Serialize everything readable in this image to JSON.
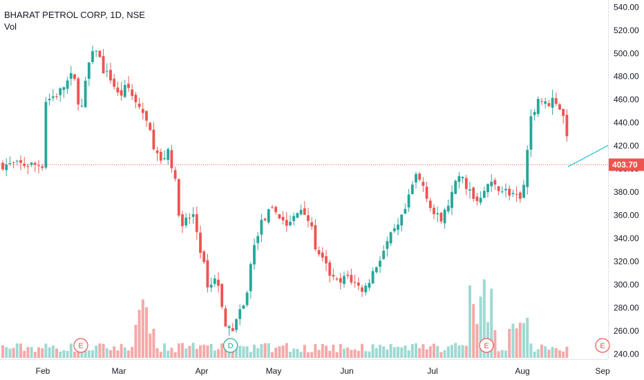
{
  "legend": {
    "title": "BHARAT PETROL CORP, 1D, NSE",
    "volume_label": "Vol"
  },
  "colors": {
    "up": "#26a69a",
    "down": "#ef5350",
    "up_volume": "#9fd9d3",
    "down_volume": "#f5a9a8",
    "last_price_line": "#ef5350",
    "projection": "#26c6da"
  },
  "last_price_label": "403.70",
  "events": [
    {
      "icon": "earnings-icon",
      "label": "E",
      "month_index": 0.5
    },
    {
      "icon": "dividend-icon",
      "label": "D",
      "month_index": 2.4
    },
    {
      "icon": "earnings-icon",
      "label": "E",
      "month_index": 5.6
    },
    {
      "icon": "earnings-icon",
      "label": "E",
      "month_index": 8.6
    }
  ],
  "chart_data": {
    "type": "candlestick",
    "title": "BHARAT PETROL CORP, 1D, NSE",
    "ylim": [
      230,
      545
    ],
    "y_ticks": [
      "240.00",
      "260.00",
      "280.00",
      "300.00",
      "320.00",
      "340.00",
      "360.00",
      "380.00",
      "400.00",
      "420.00",
      "440.00",
      "460.00",
      "480.00",
      "500.00",
      "520.00",
      "540.00"
    ],
    "x_ticks": [
      "Feb",
      "Mar",
      "Apr",
      "May",
      "Jun",
      "Jul",
      "Aug",
      "Sep"
    ],
    "last_price": 403.7,
    "close_path": [
      [
        0,
        458
      ],
      [
        0.2,
        465
      ],
      [
        0.4,
        482
      ],
      [
        0.5,
        448
      ],
      [
        0.6,
        490
      ],
      [
        0.7,
        505
      ],
      [
        0.8,
        485
      ],
      [
        0.9,
        478
      ],
      [
        1.0,
        462
      ],
      [
        1.1,
        472
      ],
      [
        1.2,
        458
      ],
      [
        1.3,
        448
      ],
      [
        1.4,
        425
      ],
      [
        1.5,
        405
      ],
      [
        1.6,
        418
      ],
      [
        1.7,
        380
      ],
      [
        1.75,
        345
      ],
      [
        1.8,
        355
      ],
      [
        1.9,
        360
      ],
      [
        2.0,
        325
      ],
      [
        2.1,
        295
      ],
      [
        2.2,
        310
      ],
      [
        2.3,
        272
      ],
      [
        2.4,
        258
      ],
      [
        2.5,
        272
      ],
      [
        2.6,
        282
      ],
      [
        2.7,
        325
      ],
      [
        2.8,
        350
      ],
      [
        2.9,
        360
      ],
      [
        3.0,
        365
      ],
      [
        3.1,
        358
      ],
      [
        3.2,
        350
      ],
      [
        3.3,
        360
      ],
      [
        3.4,
        368
      ],
      [
        3.5,
        352
      ],
      [
        3.6,
        325
      ],
      [
        3.7,
        318
      ],
      [
        3.8,
        305
      ],
      [
        3.9,
        300
      ],
      [
        4.0,
        308
      ],
      [
        4.1,
        300
      ],
      [
        4.2,
        295
      ],
      [
        4.3,
        310
      ],
      [
        4.4,
        325
      ],
      [
        4.5,
        340
      ],
      [
        4.6,
        350
      ],
      [
        4.7,
        368
      ],
      [
        4.8,
        395
      ],
      [
        4.9,
        385
      ],
      [
        5.0,
        362
      ],
      [
        5.1,
        355
      ],
      [
        5.2,
        375
      ],
      [
        5.3,
        395
      ],
      [
        5.4,
        383
      ],
      [
        5.5,
        372
      ],
      [
        5.6,
        388
      ],
      [
        5.7,
        385
      ],
      [
        5.8,
        382
      ],
      [
        5.9,
        376
      ],
      [
        6.0,
        372
      ],
      [
        6.1,
        443
      ],
      [
        6.2,
        462
      ],
      [
        6.3,
        455
      ],
      [
        6.4,
        462
      ],
      [
        6.5,
        448
      ],
      [
        6.6,
        418
      ],
      [
        6.7,
        410
      ],
      [
        6.8,
        415
      ],
      [
        6.9,
        420
      ],
      [
        7.0,
        425
      ],
      [
        7.1,
        410
      ],
      [
        7.2,
        403.7
      ]
    ],
    "volume_estimate": "bars heights derived from chart; peaks near Mar and mid-Jul"
  }
}
